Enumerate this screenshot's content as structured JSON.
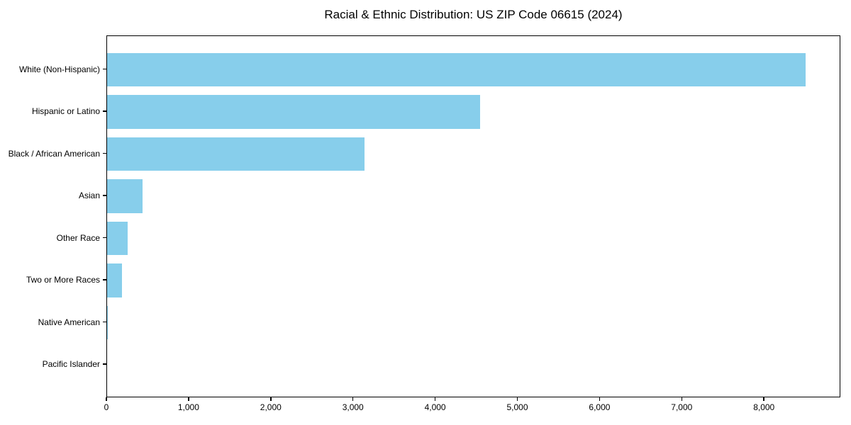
{
  "chart_data": {
    "type": "bar",
    "orientation": "horizontal",
    "title": "Racial & Ethnic Distribution: US ZIP Code 06615 (2024)",
    "categories": [
      "White (Non-Hispanic)",
      "Hispanic or Latino",
      "Black / African American",
      "Asian",
      "Other Race",
      "Two or More Races",
      "Native American",
      "Pacific Islander"
    ],
    "values": [
      8500,
      4540,
      3130,
      430,
      250,
      180,
      10,
      0
    ],
    "xlabel": "",
    "ylabel": "",
    "xlim": [
      0,
      8930
    ],
    "xticks": [
      0,
      1000,
      2000,
      3000,
      4000,
      5000,
      6000,
      7000,
      8000
    ],
    "xtick_labels": [
      "0",
      "1,000",
      "2,000",
      "3,000",
      "4,000",
      "5,000",
      "6,000",
      "7,000",
      "8,000"
    ],
    "bar_color": "#87CEEB",
    "background": "#FFFFFF",
    "grid": false,
    "legend": null
  }
}
